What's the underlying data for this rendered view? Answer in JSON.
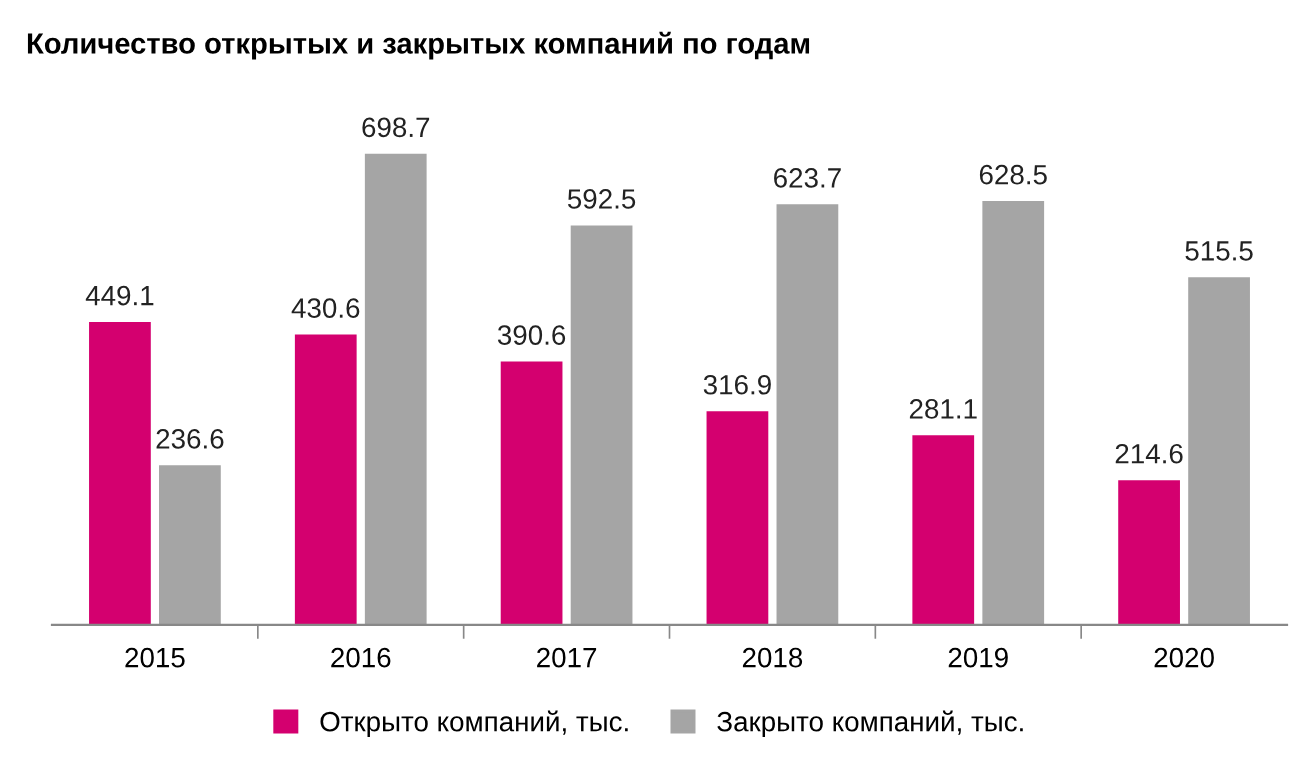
{
  "chart_data": {
    "type": "bar",
    "title": "Количество открытых и закрытых компаний по годам",
    "categories": [
      "2015",
      "2016",
      "2017",
      "2018",
      "2019",
      "2020"
    ],
    "series": [
      {
        "name": "Открыто компаний, тыс.",
        "color": "#d4006f",
        "values": [
          449.1,
          430.6,
          390.6,
          316.9,
          281.1,
          214.6
        ]
      },
      {
        "name": "Закрыто компаний, тыс.",
        "color": "#a5a5a5",
        "values": [
          236.6,
          698.7,
          592.5,
          623.7,
          628.5,
          515.5
        ]
      }
    ],
    "data_labels": true,
    "legend": "bottom",
    "grid": false
  }
}
